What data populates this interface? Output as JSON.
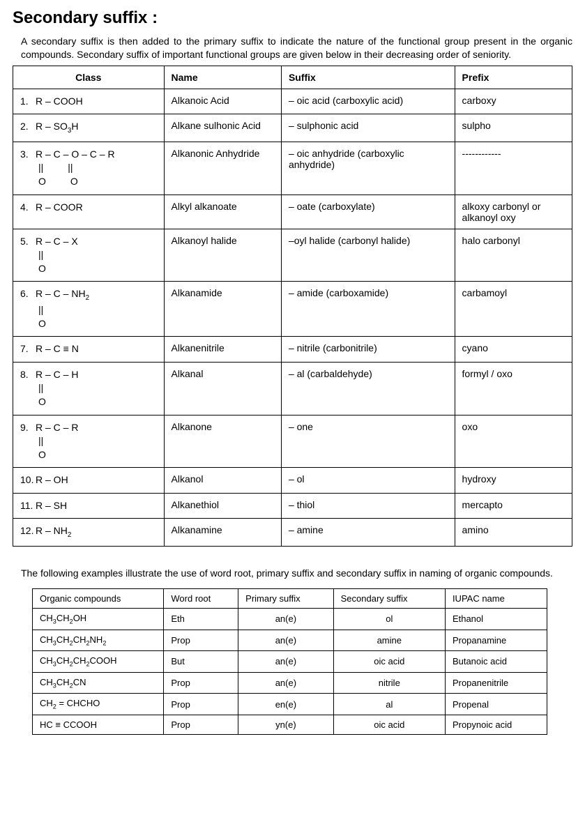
{
  "title": "Secondary suffix :",
  "intro": "A secondary suffix is then added to the primary suffix to indicate the nature of the functional group present in the organic compounds. Secondary suffix of important functional groups are given below in their decreasing order of seniority.",
  "main_headers": {
    "h1": "Class",
    "h2": "Name",
    "h3": "Suffix",
    "h4": "Prefix"
  },
  "rows": {
    "r1": {
      "num": "1.",
      "formula": "R – COOH",
      "name": "Alkanoic Acid",
      "suffix": "– oic acid (carboxylic acid)",
      "prefix": "carboxy"
    },
    "r2": {
      "num": "2.",
      "formula": "R – SO₃H",
      "name": "Alkane sulhonic Acid",
      "suffix": "– sulphonic acid",
      "prefix": "sulpho"
    },
    "r3": {
      "num": "3.",
      "formula": "R – C – O – C – R",
      "bond1": "||         ||",
      "bond2": "O         O",
      "name": "Alkanonic Anhydride",
      "suffix": "– oic anhydride (carboxylic anhydride)",
      "prefix": "------------"
    },
    "r4": {
      "num": "4.",
      "formula": "R – COOR",
      "name": "Alkyl alkanoate",
      "suffix": "– oate (carboxylate)",
      "prefix": "alkoxy carbonyl or alkanoyl oxy"
    },
    "r5": {
      "num": "5.",
      "formula": "R – C – X",
      "bond1": "||",
      "bond2": "O",
      "name": "Alkanoyl halide",
      "suffix": "–oyl halide (carbonyl halide)",
      "prefix": "halo carbonyl"
    },
    "r6": {
      "num": "6.",
      "formula": "R – C – NH₂",
      "bond1": "||",
      "bond2": "O",
      "name": "Alkanamide",
      "suffix": "– amide (carboxamide)",
      "prefix": "carbamoyl"
    },
    "r7": {
      "num": "7.",
      "formula": "R – C ≡ N",
      "name": "Alkanenitrile",
      "suffix": "– nitrile (carbonitrile)",
      "prefix": "cyano"
    },
    "r8": {
      "num": "8.",
      "formula": "R – C – H",
      "bond1": "||",
      "bond2": "O",
      "name": "Alkanal",
      "suffix": "– al (carbaldehyde)",
      "prefix": "formyl / oxo"
    },
    "r9": {
      "num": "9.",
      "formula": "R – C – R",
      "bond1": "||",
      "bond2": "O",
      "name": "Alkanone",
      "suffix": "– one",
      "prefix": "oxo"
    },
    "r10": {
      "num": "10.",
      "formula": "R – OH",
      "name": "Alkanol",
      "suffix": "– ol",
      "prefix": "hydroxy"
    },
    "r11": {
      "num": "11.",
      "formula": "R – SH",
      "name": "Alkanethiol",
      "suffix": "– thiol",
      "prefix": "mercapto"
    },
    "r12": {
      "num": "12.",
      "formula": "R – NH₂",
      "name": "Alkanamine",
      "suffix": "– amine",
      "prefix": "amino"
    }
  },
  "example_intro": "The following examples illustrate the use of word root, primary suffix and secondary suffix in naming of organic compounds.",
  "example_headers": {
    "h1": "Organic compounds",
    "h2": "Word root",
    "h3": "Primary suffix",
    "h4": "Secondary suffix",
    "h5": "IUPAC name"
  },
  "examples": {
    "e1": {
      "compound": "CH₃CH₂OH",
      "root": "Eth",
      "primary": "an(e)",
      "secondary": "ol",
      "iupac": "Ethanol"
    },
    "e2": {
      "compound": "CH₃CH₂CH₂NH₂",
      "root": "Prop",
      "primary": "an(e)",
      "secondary": "amine",
      "iupac": "Propanamine"
    },
    "e3": {
      "compound": "CH₃CH₂CH₂COOH",
      "root": "But",
      "primary": "an(e)",
      "secondary": "oic acid",
      "iupac": "Butanoic acid"
    },
    "e4": {
      "compound": "CH₃CH₂CN",
      "root": "Prop",
      "primary": "an(e)",
      "secondary": "nitrile",
      "iupac": "Propanenitrile"
    },
    "e5": {
      "compound": "CH₂ = CHCHO",
      "root": "Prop",
      "primary": "en(e)",
      "secondary": "al",
      "iupac": "Propenal"
    },
    "e6": {
      "compound": "HC ≡ CCOOH",
      "root": "Prop",
      "primary": "yn(e)",
      "secondary": "oic acid",
      "iupac": "Propynoic acid"
    }
  }
}
